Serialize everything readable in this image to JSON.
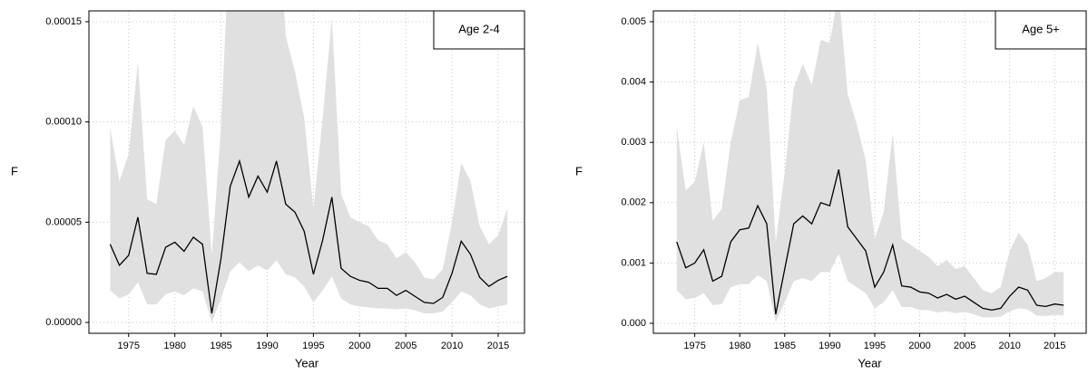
{
  "chart_data": [
    {
      "type": "line",
      "label": "Age 2-4",
      "xlabel": "Year",
      "ylabel": "F",
      "x": [
        1973,
        1974,
        1975,
        1976,
        1977,
        1978,
        1979,
        1980,
        1981,
        1982,
        1983,
        1984,
        1985,
        1986,
        1987,
        1988,
        1989,
        1990,
        1991,
        1992,
        1993,
        1994,
        1995,
        1996,
        1997,
        1998,
        1999,
        2000,
        2001,
        2002,
        2003,
        2004,
        2005,
        2006,
        2007,
        2008,
        2009,
        2010,
        2011,
        2012,
        2013,
        2014,
        2015,
        2016
      ],
      "values": [
        3.9e-05,
        2.85e-05,
        3.35e-05,
        5.25e-05,
        2.45e-05,
        2.4e-05,
        3.75e-05,
        4e-05,
        3.55e-05,
        4.25e-05,
        3.9e-05,
        4.5e-06,
        3.2e-05,
        6.8e-05,
        8.05e-05,
        6.25e-05,
        7.3e-05,
        6.5e-05,
        8.05e-05,
        5.9e-05,
        5.5e-05,
        4.55e-05,
        2.4e-05,
        4.1e-05,
        6.25e-05,
        2.7e-05,
        2.3e-05,
        2.1e-05,
        2e-05,
        1.7e-05,
        1.7e-05,
        1.35e-05,
        1.6e-05,
        1.3e-05,
        1e-05,
        9.5e-06,
        1.25e-05,
        2.45e-05,
        4.05e-05,
        3.4e-05,
        2.25e-05,
        1.8e-05,
        2.1e-05,
        2.3e-05
      ],
      "upper": [
        9.7e-05,
        7.05e-05,
        8.4e-05,
        0.00013,
        6.15e-05,
        5.9e-05,
        9.1e-05,
        9.55e-05,
        8.85e-05,
        0.000108,
        9.75e-05,
        3.35e-05,
        9.75e-05,
        0.0002,
        0.00025,
        0.0003,
        0.0003,
        0.00028,
        0.00022,
        0.000143,
        0.000125,
        0.000102,
        5.7e-05,
        0.000102,
        0.000152,
        6.4e-05,
        5.25e-05,
        5e-05,
        4.8e-05,
        4.1e-05,
        3.9e-05,
        3.2e-05,
        3.5e-05,
        3e-05,
        2.25e-05,
        2.15e-05,
        2.65e-05,
        5e-05,
        7.95e-05,
        7.05e-05,
        4.8e-05,
        3.9e-05,
        4.35e-05,
        5.7e-05
      ],
      "lower": [
        1.6e-05,
        1.2e-05,
        1.4e-05,
        2e-05,
        9e-06,
        9e-06,
        1.4e-05,
        1.55e-05,
        1.35e-05,
        1.7e-05,
        1.55e-05,
        0,
        1.2e-05,
        2.55e-05,
        3e-05,
        2.55e-05,
        2.85e-05,
        2.6e-05,
        3.1e-05,
        2.4e-05,
        2.25e-05,
        1.8e-05,
        1e-05,
        1.6e-05,
        2.3e-05,
        1.2e-05,
        9e-06,
        8e-06,
        7.5e-06,
        7e-06,
        7e-06,
        6.5e-06,
        7e-06,
        6e-06,
        4.5e-06,
        4.5e-06,
        5.5e-06,
        1e-05,
        1.55e-05,
        1.35e-05,
        9e-06,
        7e-06,
        8e-06,
        9e-06
      ],
      "color": "#000000",
      "band_color": "#e0e0e0",
      "grid": true,
      "xlim": [
        1970.7,
        2017.85
      ],
      "xticks": [
        1975,
        1980,
        1985,
        1990,
        1995,
        2000,
        2005,
        2010,
        2015
      ],
      "ylim": [
        -5.4e-06,
        0.0001554
      ],
      "yticks": [
        {
          "value": 0,
          "label": "0.00000"
        },
        {
          "value": 5e-05,
          "label": "0.00005"
        },
        {
          "value": 0.0001,
          "label": "0.00010"
        },
        {
          "value": 0.00015,
          "label": "0.00015"
        }
      ]
    },
    {
      "type": "line",
      "label": "Age 5+",
      "xlabel": "Year",
      "ylabel": "F",
      "x": [
        1973,
        1974,
        1975,
        1976,
        1977,
        1978,
        1979,
        1980,
        1981,
        1982,
        1983,
        1984,
        1985,
        1986,
        1987,
        1988,
        1989,
        1990,
        1991,
        1992,
        1993,
        1994,
        1995,
        1996,
        1997,
        1998,
        1999,
        2000,
        2001,
        2002,
        2003,
        2004,
        2005,
        2006,
        2007,
        2008,
        2009,
        2010,
        2011,
        2012,
        2013,
        2014,
        2015,
        2016
      ],
      "values": [
        0.00135,
        0.00092,
        0.001,
        0.00122,
        0.0007,
        0.00078,
        0.00135,
        0.00155,
        0.00158,
        0.00195,
        0.00165,
        0.00015,
        0.0009,
        0.00165,
        0.00178,
        0.00165,
        0.002,
        0.00195,
        0.00255,
        0.0016,
        0.0014,
        0.0012,
        0.0006,
        0.00085,
        0.0013,
        0.00062,
        0.0006,
        0.00052,
        0.0005,
        0.00042,
        0.00048,
        0.0004,
        0.00045,
        0.00035,
        0.00025,
        0.00022,
        0.00025,
        0.00045,
        0.0006,
        0.00055,
        0.0003,
        0.00028,
        0.00032,
        0.0003
      ],
      "upper": [
        0.00325,
        0.0022,
        0.00235,
        0.003,
        0.0017,
        0.0019,
        0.003,
        0.0037,
        0.00375,
        0.00465,
        0.0039,
        0.00135,
        0.0025,
        0.0039,
        0.0043,
        0.00395,
        0.0047,
        0.00465,
        0.0055,
        0.0038,
        0.0033,
        0.0027,
        0.0014,
        0.00185,
        0.00315,
        0.0014,
        0.0013,
        0.0012,
        0.0011,
        0.00095,
        0.00105,
        0.0009,
        0.00095,
        0.00075,
        0.00055,
        0.0005,
        0.0006,
        0.0012,
        0.0015,
        0.0013,
        0.0007,
        0.00075,
        0.00085,
        0.00085
      ],
      "lower": [
        0.00055,
        0.0004,
        0.00042,
        0.0005,
        0.0003,
        0.00032,
        0.0006,
        0.00065,
        0.00065,
        0.0008,
        0.0007,
        2e-05,
        0.00035,
        0.0007,
        0.00075,
        0.0007,
        0.00085,
        0.00085,
        0.00115,
        0.0007,
        0.0006,
        0.0005,
        0.00025,
        0.00035,
        0.00055,
        0.00027,
        0.00027,
        0.00022,
        0.00022,
        0.00018,
        0.0002,
        0.00017,
        0.00019,
        0.00015,
        0.0001,
        0.0001,
        0.00011,
        0.0002,
        0.00025,
        0.00023,
        0.00013,
        0.00012,
        0.00014,
        0.00013
      ],
      "color": "#000000",
      "band_color": "#e0e0e0",
      "grid": true,
      "xlim": [
        1970.4,
        2018.5
      ],
      "xticks": [
        1975,
        1980,
        1985,
        1990,
        1995,
        2000,
        2005,
        2010,
        2015
      ],
      "ylim": [
        -0.000165,
        0.00518
      ],
      "yticks": [
        {
          "value": 0,
          "label": "0.000"
        },
        {
          "value": 0.001,
          "label": "0.001"
        },
        {
          "value": 0.002,
          "label": "0.002"
        },
        {
          "value": 0.003,
          "label": "0.003"
        },
        {
          "value": 0.004,
          "label": "0.004"
        },
        {
          "value": 0.005,
          "label": "0.005"
        }
      ]
    }
  ]
}
